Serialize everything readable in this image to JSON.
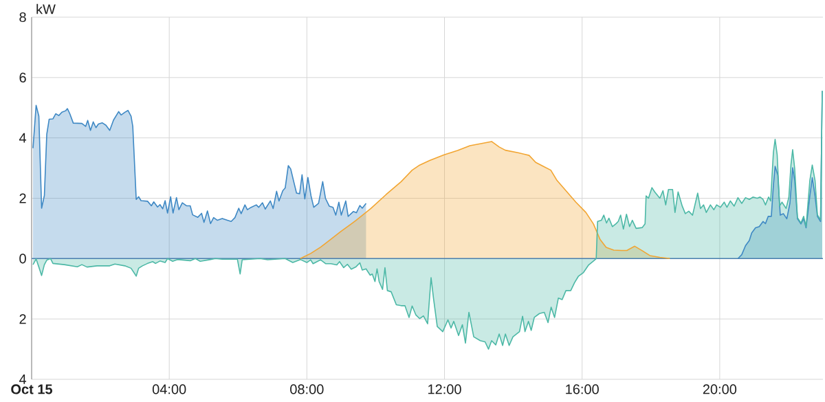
{
  "chart_data": {
    "type": "area",
    "ylabel": "kW",
    "xlim": [
      0,
      23
    ],
    "ylim": [
      -4,
      8
    ],
    "grid": true,
    "xticks": [
      {
        "value": 0,
        "label": "Oct 15"
      },
      {
        "value": 4,
        "label": "04:00"
      },
      {
        "value": 8,
        "label": "08:00"
      },
      {
        "value": 12,
        "label": "12:00"
      },
      {
        "value": 16,
        "label": "16:00"
      },
      {
        "value": 20,
        "label": "20:00"
      }
    ],
    "yticks": [
      {
        "value": -4,
        "label": "4"
      },
      {
        "value": -2,
        "label": "2"
      },
      0,
      2,
      4,
      6,
      8
    ],
    "ref_lines": [
      {
        "axis": "y",
        "value": 0,
        "color": "#4a80b0"
      }
    ],
    "series": [
      {
        "color": "#3e88c4",
        "x": [
          0.04,
          0.13,
          0.21,
          0.29,
          0.37,
          0.44,
          0.51,
          0.62,
          0.7,
          0.79,
          0.88,
          0.99,
          1.04,
          1.11,
          1.21,
          1.46,
          1.57,
          1.63,
          1.71,
          1.79,
          1.87,
          1.94,
          2.05,
          2.16,
          2.27,
          2.38,
          2.53,
          2.6,
          2.71,
          2.8,
          2.89,
          2.94,
          3.04,
          3.11,
          3.18,
          3.37,
          3.48,
          3.55,
          3.66,
          3.73,
          3.81,
          3.88,
          3.95,
          4.04,
          4.11,
          4.21,
          4.28,
          4.38,
          4.5,
          4.61,
          4.68,
          4.83,
          4.94,
          5.01,
          5.11,
          5.2,
          5.29,
          5.4,
          5.54,
          5.69,
          5.8,
          5.91,
          6.02,
          6.09,
          6.2,
          6.27,
          6.38,
          6.53,
          6.6,
          6.71,
          6.79,
          6.94,
          7.02,
          7.12,
          7.19,
          7.3,
          7.37,
          7.46,
          7.53,
          7.61,
          7.7,
          7.79,
          7.86,
          7.94,
          8.03,
          8.12,
          8.2,
          8.34,
          8.46,
          8.54,
          8.65,
          8.76,
          8.84,
          8.93,
          9.0,
          9.13,
          9.2,
          9.35,
          9.44,
          9.54,
          9.61,
          9.72,
          9.8,
          20.53,
          20.64,
          20.75,
          20.86,
          20.93,
          21.04,
          21.15,
          21.26,
          21.33,
          21.41,
          21.5,
          21.56,
          21.61,
          21.69,
          21.76,
          21.85,
          21.95,
          22.04,
          22.12,
          22.18,
          22.26,
          22.36,
          22.44,
          22.51,
          22.62,
          22.69,
          22.77,
          22.84,
          22.93,
          22.98
        ],
        "values": [
          3.66,
          5.08,
          4.72,
          1.67,
          2.09,
          4.12,
          4.62,
          4.63,
          4.8,
          4.74,
          4.85,
          4.9,
          4.97,
          4.8,
          4.49,
          4.48,
          4.38,
          4.58,
          4.25,
          4.53,
          4.34,
          4.46,
          4.5,
          4.42,
          4.25,
          4.59,
          4.87,
          4.76,
          4.85,
          4.91,
          4.72,
          4.38,
          1.96,
          2.05,
          1.92,
          1.9,
          1.75,
          1.88,
          1.71,
          1.79,
          1.65,
          1.92,
          1.51,
          2.05,
          1.51,
          2.02,
          1.62,
          1.85,
          1.75,
          1.75,
          1.45,
          1.37,
          1.5,
          1.2,
          1.58,
          1.16,
          1.36,
          1.27,
          1.33,
          1.27,
          1.23,
          1.36,
          1.67,
          1.49,
          1.78,
          1.62,
          1.7,
          1.78,
          1.7,
          1.85,
          1.64,
          1.91,
          1.66,
          2.23,
          1.91,
          2.25,
          2.34,
          3.08,
          2.97,
          2.59,
          2.17,
          2.15,
          2.78,
          1.98,
          2.69,
          2.08,
          1.7,
          1.83,
          2.55,
          2.0,
          1.74,
          1.7,
          1.44,
          1.87,
          1.44,
          1.91,
          1.4,
          1.56,
          1.52,
          1.76,
          1.67,
          1.83,
          null,
          0,
          0.13,
          0.43,
          0.6,
          0.85,
          1.02,
          1.06,
          1.23,
          1.16,
          1.4,
          1.4,
          2.42,
          3.06,
          2.76,
          1.44,
          1.49,
          1.32,
          1.83,
          3.01,
          2.59,
          1.32,
          1.15,
          1.32,
          1.02,
          2.08,
          2.68,
          2.08,
          1.4,
          1.23,
          5.56
        ]
      },
      {
        "color": "#f2a531",
        "x": [
          7.81,
          8.11,
          8.4,
          8.55,
          8.98,
          9.43,
          9.86,
          10.3,
          10.74,
          11.06,
          11.28,
          11.57,
          11.99,
          12.38,
          12.74,
          13.11,
          13.37,
          13.59,
          13.77,
          14.14,
          14.46,
          14.65,
          14.87,
          15.09,
          15.27,
          15.53,
          15.82,
          16.11,
          16.33,
          16.52,
          16.7,
          16.92,
          17.14,
          17.3,
          17.53,
          17.75,
          17.97,
          18.26,
          18.55
        ],
        "values": [
          0,
          0.17,
          0.38,
          0.51,
          0.89,
          1.27,
          1.66,
          2.12,
          2.55,
          2.93,
          3.1,
          3.25,
          3.44,
          3.58,
          3.74,
          3.82,
          3.88,
          3.7,
          3.59,
          3.51,
          3.42,
          3.19,
          3.06,
          2.93,
          2.59,
          2.25,
          1.87,
          1.53,
          1.15,
          0.64,
          0.37,
          0.28,
          0.27,
          0.27,
          0.41,
          0.26,
          0.1,
          0.04,
          0
        ]
      },
      {
        "color": "#4cb8a6",
        "x": [
          0.04,
          0.13,
          0.21,
          0.29,
          0.37,
          0.44,
          0.55,
          0.62,
          0.95,
          1.33,
          1.46,
          1.61,
          1.9,
          2.27,
          2.42,
          2.71,
          2.89,
          3.04,
          3.11,
          3.22,
          3.37,
          3.52,
          3.6,
          3.73,
          3.88,
          3.95,
          4.1,
          4.24,
          4.61,
          4.76,
          4.9,
          5.2,
          5.34,
          5.54,
          5.98,
          6.06,
          6.12,
          6.64,
          6.86,
          7.37,
          7.59,
          7.81,
          8.0,
          8.11,
          8.18,
          8.4,
          8.55,
          8.7,
          8.87,
          8.95,
          9.07,
          9.18,
          9.29,
          9.43,
          9.54,
          9.61,
          9.72,
          9.84,
          9.9,
          9.98,
          10.04,
          10.1,
          10.2,
          10.27,
          10.34,
          10.45,
          10.6,
          10.74,
          10.85,
          10.97,
          11.06,
          11.17,
          11.28,
          11.39,
          11.51,
          11.61,
          11.68,
          11.79,
          11.95,
          12.1,
          12.19,
          12.27,
          12.41,
          12.52,
          12.61,
          12.71,
          12.85,
          13.04,
          13.18,
          13.28,
          13.37,
          13.49,
          13.59,
          13.69,
          13.77,
          13.88,
          13.99,
          14.18,
          14.27,
          14.34,
          14.44,
          14.52,
          14.61,
          14.76,
          14.9,
          15.01,
          15.1,
          15.2,
          15.31,
          15.42,
          15.53,
          15.67,
          15.78,
          15.89,
          16.04,
          16.19,
          16.33,
          16.41,
          16.45,
          16.56,
          16.63,
          16.71,
          16.78,
          16.88,
          16.99,
          17.05,
          17.12,
          17.2,
          17.29,
          17.38,
          17.46,
          17.57,
          17.75,
          17.83,
          17.86,
          17.93,
          18.03,
          18.11,
          18.26,
          18.35,
          18.43,
          18.51,
          18.63,
          18.7,
          18.79,
          18.91,
          19.0,
          19.1,
          19.21,
          19.36,
          19.44,
          19.53,
          19.61,
          19.73,
          19.83,
          19.91,
          20.02,
          20.13,
          20.21,
          20.31,
          20.42,
          20.53,
          20.64,
          20.75,
          20.86,
          20.97,
          21.09,
          21.17,
          21.26,
          21.33,
          21.42,
          21.48,
          21.56,
          21.61,
          21.67,
          21.74,
          21.81,
          21.93,
          22.01,
          22.07,
          22.12,
          22.18,
          22.26,
          22.36,
          22.44,
          22.51,
          22.62,
          22.69,
          22.77,
          22.84,
          22.93,
          22.98
        ],
        "values": [
          -0.2,
          -0.01,
          -0.28,
          -0.56,
          -0.2,
          -0.05,
          0,
          -0.16,
          -0.2,
          -0.27,
          -0.2,
          -0.28,
          -0.24,
          -0.24,
          -0.18,
          -0.24,
          -0.32,
          -0.58,
          -0.32,
          -0.24,
          -0.16,
          -0.1,
          -0.16,
          -0.08,
          -0.13,
          0,
          -0.09,
          -0.03,
          -0.07,
          0,
          -0.09,
          -0.03,
          0,
          -0.02,
          -0.02,
          -0.51,
          -0.04,
          0,
          -0.04,
          0,
          -0.13,
          -0.03,
          -0.13,
          -0.04,
          -0.17,
          -0.04,
          -0.17,
          -0.17,
          -0.21,
          -0.1,
          -0.3,
          -0.19,
          -0.35,
          -0.27,
          -0.14,
          -0.38,
          -0.34,
          -0.55,
          -0.51,
          -0.76,
          -0.34,
          -0.76,
          -1.02,
          -0.3,
          -1.06,
          -1.1,
          -1.53,
          -1.56,
          -1.56,
          -1.95,
          -1.57,
          -1.87,
          -1.99,
          -1.9,
          -2.16,
          -0.63,
          -1.31,
          -2.25,
          -2.42,
          -2.03,
          -2.3,
          -2.08,
          -2.55,
          -2.19,
          -2.8,
          -1.78,
          -2.59,
          -2.72,
          -2.76,
          -3.0,
          -2.72,
          -2.86,
          -2.5,
          -2.88,
          -2.5,
          -2.88,
          -2.59,
          -2.42,
          -1.91,
          -2.42,
          -2.08,
          -2.38,
          -1.95,
          -1.82,
          -1.78,
          -2.12,
          -1.61,
          -1.95,
          -1.31,
          -1.36,
          -1.06,
          -1.06,
          -0.8,
          -0.59,
          -0.46,
          -0.21,
          -0.08,
          0,
          1.23,
          1.27,
          1.44,
          1.18,
          1.34,
          1.06,
          1.16,
          1.23,
          1.44,
          0.98,
          1.47,
          1.06,
          1.27,
          1.0,
          1.03,
          1.15,
          2.08,
          2.0,
          2.35,
          2.21,
          2.0,
          2.25,
          1.78,
          2.29,
          2.29,
          1.53,
          2.21,
          1.74,
          1.49,
          1.57,
          1.44,
          2.17,
          1.66,
          1.78,
          1.53,
          1.78,
          1.62,
          1.78,
          1.7,
          1.87,
          1.7,
          1.91,
          1.74,
          2.02,
          1.83,
          2.02,
          1.96,
          2.04,
          2.0,
          2.04,
          1.96,
          1.78,
          2.04,
          1.91,
          3.52,
          3.95,
          3.44,
          1.74,
          1.87,
          1.66,
          2.04,
          3.1,
          3.61,
          2.97,
          1.36,
          1.18,
          1.4,
          1.06,
          2.59,
          3.1,
          2.59,
          1.45,
          1.28,
          5.56
        ]
      }
    ]
  }
}
